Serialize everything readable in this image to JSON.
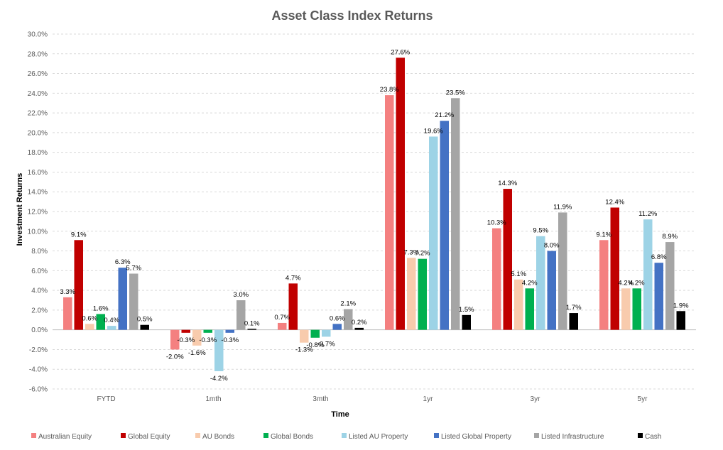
{
  "chart_data": {
    "type": "bar",
    "title": "Asset Class Index Returns",
    "xlabel": "Time",
    "ylabel": "Investment Returns",
    "ylim": [
      -6,
      30
    ],
    "ytick_step": 2,
    "ytick_format": "percent_1dp",
    "grid": true,
    "legend_position": "bottom",
    "categories": [
      "FYTD",
      "1mth",
      "3mth",
      "1yr",
      "3yr",
      "5yr"
    ],
    "series": [
      {
        "name": "Australian Equity",
        "color": "#f48080",
        "values": [
          3.3,
          -2.0,
          0.7,
          23.8,
          10.3,
          9.1
        ]
      },
      {
        "name": "Global Equity",
        "color": "#c00000",
        "values": [
          9.1,
          -0.3,
          4.7,
          27.6,
          14.3,
          12.4
        ]
      },
      {
        "name": "AU Bonds",
        "color": "#f8cbad",
        "values": [
          0.6,
          -1.6,
          -1.3,
          7.3,
          5.1,
          4.2
        ]
      },
      {
        "name": "Global Bonds",
        "color": "#00b050",
        "values": [
          1.6,
          -0.3,
          -0.8,
          7.2,
          4.2,
          4.2
        ]
      },
      {
        "name": "Listed AU Property",
        "color": "#9dd3e6",
        "values": [
          0.4,
          -4.2,
          -0.7,
          19.6,
          9.5,
          11.2
        ]
      },
      {
        "name": "Listed Global Property",
        "color": "#4472c4",
        "values": [
          6.3,
          -0.3,
          0.6,
          21.2,
          8.0,
          6.8
        ]
      },
      {
        "name": "Listed Infrastructure",
        "color": "#a5a5a5",
        "values": [
          5.7,
          3.0,
          2.1,
          23.5,
          11.9,
          8.9
        ]
      },
      {
        "name": "Cash",
        "color": "#000000",
        "values": [
          0.5,
          0.1,
          0.2,
          1.5,
          1.7,
          1.9
        ]
      }
    ]
  }
}
